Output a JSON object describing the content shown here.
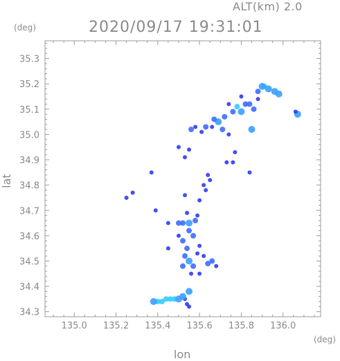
{
  "header": {
    "altitude": "ALT(km)  2.0",
    "timestamp": "2020/09/17 19:31:01",
    "y_unit": "(deg)",
    "x_unit": "(deg)"
  },
  "chart_data": {
    "type": "scatter",
    "title": "2020/09/17 19:31:01",
    "subtitle": "ALT(km)  2.0",
    "xlabel": "lon",
    "ylabel": "lat",
    "x_unit": "(deg)",
    "y_unit": "(deg)",
    "xlim": [
      134.86,
      136.18
    ],
    "ylim": [
      34.28,
      35.37
    ],
    "x_ticks": [
      "135.0",
      "135.2",
      "135.4",
      "135.6",
      "135.8",
      "136.0"
    ],
    "y_ticks": [
      "34.3",
      "34.4",
      "34.5",
      "34.6",
      "34.7",
      "34.8",
      "34.9",
      "35.0",
      "35.1",
      "35.2",
      "35.3"
    ],
    "grid": false,
    "colors": {
      "weak": "#2f3bf2",
      "moderate": "#3f6bff",
      "strong": "#3aa0ff",
      "peak": "#33ccff"
    },
    "points": [
      {
        "lon": 135.91,
        "lat": 35.19,
        "level": "peak"
      },
      {
        "lon": 135.9,
        "lat": 35.19,
        "level": "strong"
      },
      {
        "lon": 135.93,
        "lat": 35.18,
        "level": "strong"
      },
      {
        "lon": 135.96,
        "lat": 35.17,
        "level": "strong"
      },
      {
        "lon": 135.98,
        "lat": 35.16,
        "level": "strong"
      },
      {
        "lon": 135.88,
        "lat": 35.17,
        "level": "moderate"
      },
      {
        "lon": 135.84,
        "lat": 35.12,
        "level": "moderate"
      },
      {
        "lon": 135.82,
        "lat": 35.12,
        "level": "moderate"
      },
      {
        "lon": 135.86,
        "lat": 35.1,
        "level": "moderate"
      },
      {
        "lon": 135.8,
        "lat": 35.15,
        "level": "weak"
      },
      {
        "lon": 135.78,
        "lat": 35.11,
        "level": "peak"
      },
      {
        "lon": 135.8,
        "lat": 35.09,
        "level": "strong"
      },
      {
        "lon": 135.76,
        "lat": 35.09,
        "level": "moderate"
      },
      {
        "lon": 135.74,
        "lat": 35.12,
        "level": "weak"
      },
      {
        "lon": 135.72,
        "lat": 35.07,
        "level": "moderate"
      },
      {
        "lon": 135.69,
        "lat": 35.05,
        "level": "strong"
      },
      {
        "lon": 135.67,
        "lat": 35.06,
        "level": "moderate"
      },
      {
        "lon": 135.66,
        "lat": 35.03,
        "level": "weak"
      },
      {
        "lon": 135.71,
        "lat": 35.02,
        "level": "moderate"
      },
      {
        "lon": 135.63,
        "lat": 35.03,
        "level": "moderate"
      },
      {
        "lon": 135.61,
        "lat": 35.01,
        "level": "weak"
      },
      {
        "lon": 135.58,
        "lat": 35.03,
        "level": "weak"
      },
      {
        "lon": 135.56,
        "lat": 35.02,
        "level": "moderate"
      },
      {
        "lon": 135.74,
        "lat": 35.0,
        "level": "weak"
      },
      {
        "lon": 135.85,
        "lat": 35.02,
        "level": "strong"
      },
      {
        "lon": 136.07,
        "lat": 35.08,
        "level": "strong"
      },
      {
        "lon": 136.06,
        "lat": 35.09,
        "level": "weak"
      },
      {
        "lon": 135.88,
        "lat": 35.14,
        "level": "weak"
      },
      {
        "lon": 135.5,
        "lat": 34.95,
        "level": "weak"
      },
      {
        "lon": 135.55,
        "lat": 34.94,
        "level": "weak"
      },
      {
        "lon": 135.53,
        "lat": 34.91,
        "level": "weak"
      },
      {
        "lon": 135.77,
        "lat": 34.93,
        "level": "weak"
      },
      {
        "lon": 135.76,
        "lat": 34.89,
        "level": "weak"
      },
      {
        "lon": 135.73,
        "lat": 34.89,
        "level": "weak"
      },
      {
        "lon": 135.37,
        "lat": 34.85,
        "level": "weak"
      },
      {
        "lon": 135.25,
        "lat": 34.75,
        "level": "weak"
      },
      {
        "lon": 135.28,
        "lat": 34.77,
        "level": "weak"
      },
      {
        "lon": 135.64,
        "lat": 34.84,
        "level": "weak"
      },
      {
        "lon": 135.65,
        "lat": 34.82,
        "level": "weak"
      },
      {
        "lon": 135.62,
        "lat": 34.8,
        "level": "weak"
      },
      {
        "lon": 135.63,
        "lat": 34.78,
        "level": "weak"
      },
      {
        "lon": 135.53,
        "lat": 34.76,
        "level": "weak"
      },
      {
        "lon": 135.84,
        "lat": 34.85,
        "level": "weak"
      },
      {
        "lon": 135.6,
        "lat": 34.74,
        "level": "weak"
      },
      {
        "lon": 135.39,
        "lat": 34.7,
        "level": "weak"
      },
      {
        "lon": 135.54,
        "lat": 34.69,
        "level": "weak"
      },
      {
        "lon": 135.58,
        "lat": 34.66,
        "level": "moderate"
      },
      {
        "lon": 135.59,
        "lat": 34.68,
        "level": "weak"
      },
      {
        "lon": 135.55,
        "lat": 34.65,
        "level": "strong"
      },
      {
        "lon": 135.52,
        "lat": 34.65,
        "level": "moderate"
      },
      {
        "lon": 135.5,
        "lat": 34.65,
        "level": "moderate"
      },
      {
        "lon": 135.45,
        "lat": 34.65,
        "level": "weak"
      },
      {
        "lon": 135.55,
        "lat": 34.62,
        "level": "moderate"
      },
      {
        "lon": 135.57,
        "lat": 34.6,
        "level": "moderate"
      },
      {
        "lon": 135.52,
        "lat": 34.58,
        "level": "moderate"
      },
      {
        "lon": 135.5,
        "lat": 34.6,
        "level": "weak"
      },
      {
        "lon": 135.54,
        "lat": 34.55,
        "level": "moderate"
      },
      {
        "lon": 135.53,
        "lat": 34.52,
        "level": "moderate"
      },
      {
        "lon": 135.55,
        "lat": 34.5,
        "level": "strong"
      },
      {
        "lon": 135.57,
        "lat": 34.48,
        "level": "moderate"
      },
      {
        "lon": 135.52,
        "lat": 34.48,
        "level": "moderate"
      },
      {
        "lon": 135.59,
        "lat": 34.53,
        "level": "weak"
      },
      {
        "lon": 135.6,
        "lat": 34.56,
        "level": "weak"
      },
      {
        "lon": 135.62,
        "lat": 34.52,
        "level": "weak"
      },
      {
        "lon": 135.64,
        "lat": 34.49,
        "level": "moderate"
      },
      {
        "lon": 135.66,
        "lat": 34.5,
        "level": "moderate"
      },
      {
        "lon": 135.68,
        "lat": 34.48,
        "level": "weak"
      },
      {
        "lon": 135.56,
        "lat": 34.45,
        "level": "weak"
      },
      {
        "lon": 135.6,
        "lat": 34.45,
        "level": "weak"
      },
      {
        "lon": 135.45,
        "lat": 34.55,
        "level": "weak"
      },
      {
        "lon": 135.55,
        "lat": 34.38,
        "level": "strong"
      },
      {
        "lon": 135.53,
        "lat": 34.35,
        "level": "weak"
      },
      {
        "lon": 135.54,
        "lat": 34.33,
        "level": "weak"
      },
      {
        "lon": 135.55,
        "lat": 34.32,
        "level": "weak"
      },
      {
        "lon": 135.4,
        "lat": 34.34,
        "level": "peak"
      },
      {
        "lon": 135.42,
        "lat": 34.34,
        "level": "peak"
      },
      {
        "lon": 135.44,
        "lat": 34.35,
        "level": "peak"
      },
      {
        "lon": 135.46,
        "lat": 34.35,
        "level": "peak"
      },
      {
        "lon": 135.48,
        "lat": 34.35,
        "level": "peak"
      },
      {
        "lon": 135.5,
        "lat": 34.35,
        "level": "strong"
      },
      {
        "lon": 135.52,
        "lat": 34.36,
        "level": "strong"
      },
      {
        "lon": 135.38,
        "lat": 34.34,
        "level": "strong"
      }
    ]
  }
}
